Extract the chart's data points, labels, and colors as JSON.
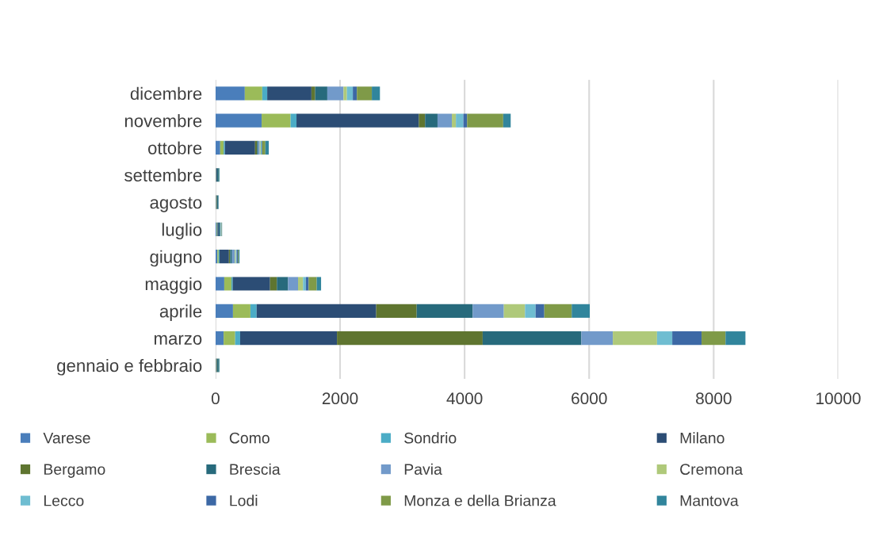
{
  "chart_data": {
    "type": "bar",
    "orientation": "horizontal",
    "stacked": true,
    "categories": [
      "dicembre",
      "novembre",
      "ottobre",
      "settembre",
      "agosto",
      "luglio",
      "giugno",
      "maggio",
      "aprile",
      "marzo",
      "gennaio e febbraio"
    ],
    "xlim": [
      0,
      10000
    ],
    "xticks": [
      0,
      2000,
      4000,
      6000,
      8000,
      10000
    ],
    "grid": "x",
    "legend": "bottom",
    "series": [
      {
        "name": "Varese",
        "color": "#4a7ebb",
        "values": [
          470,
          740,
          75,
          5,
          5,
          15,
          30,
          140,
          280,
          130,
          5
        ]
      },
      {
        "name": "Como",
        "color": "#9bbb59",
        "values": [
          280,
          465,
          55,
          5,
          5,
          10,
          20,
          115,
          280,
          185,
          5
        ]
      },
      {
        "name": "Sondrio",
        "color": "#4bacc6",
        "values": [
          80,
          95,
          20,
          0,
          0,
          5,
          15,
          20,
          100,
          80,
          0
        ]
      },
      {
        "name": "Milano",
        "color": "#2c4d75",
        "values": [
          710,
          1965,
          485,
          15,
          10,
          20,
          150,
          600,
          1920,
          1555,
          10
        ]
      },
      {
        "name": "Bergamo",
        "color": "#5f7530",
        "values": [
          60,
          100,
          30,
          null,
          5,
          null,
          20,
          110,
          650,
          2340,
          5
        ]
      },
      {
        "name": "Brescia",
        "color": "#276a7c",
        "values": [
          195,
          200,
          20,
          25,
          20,
          25,
          30,
          180,
          900,
          1585,
          25
        ]
      },
      {
        "name": "Pavia",
        "color": "#729aca",
        "values": [
          260,
          230,
          25,
          0,
          0,
          5,
          45,
          160,
          500,
          505,
          0
        ]
      },
      {
        "name": "Cremona",
        "color": "#afc97a",
        "values": [
          55,
          65,
          15,
          0,
          0,
          5,
          15,
          80,
          340,
          710,
          0
        ]
      },
      {
        "name": "Lecco",
        "color": "#6fbdd1",
        "values": [
          95,
          120,
          15,
          0,
          0,
          5,
          15,
          45,
          170,
          245,
          0
        ]
      },
      {
        "name": "Lodi",
        "color": "#3c68a5",
        "values": [
          65,
          60,
          10,
          0,
          0,
          5,
          20,
          45,
          140,
          470,
          0
        ]
      },
      {
        "name": "Monza e della Brianza",
        "color": "#7f9a48",
        "values": [
          240,
          580,
          50,
          5,
          0,
          5,
          10,
          130,
          440,
          385,
          5
        ]
      },
      {
        "name": "Mantova",
        "color": "#31859c",
        "values": [
          130,
          120,
          55,
          10,
          5,
          5,
          15,
          70,
          290,
          320,
          10
        ]
      }
    ]
  }
}
